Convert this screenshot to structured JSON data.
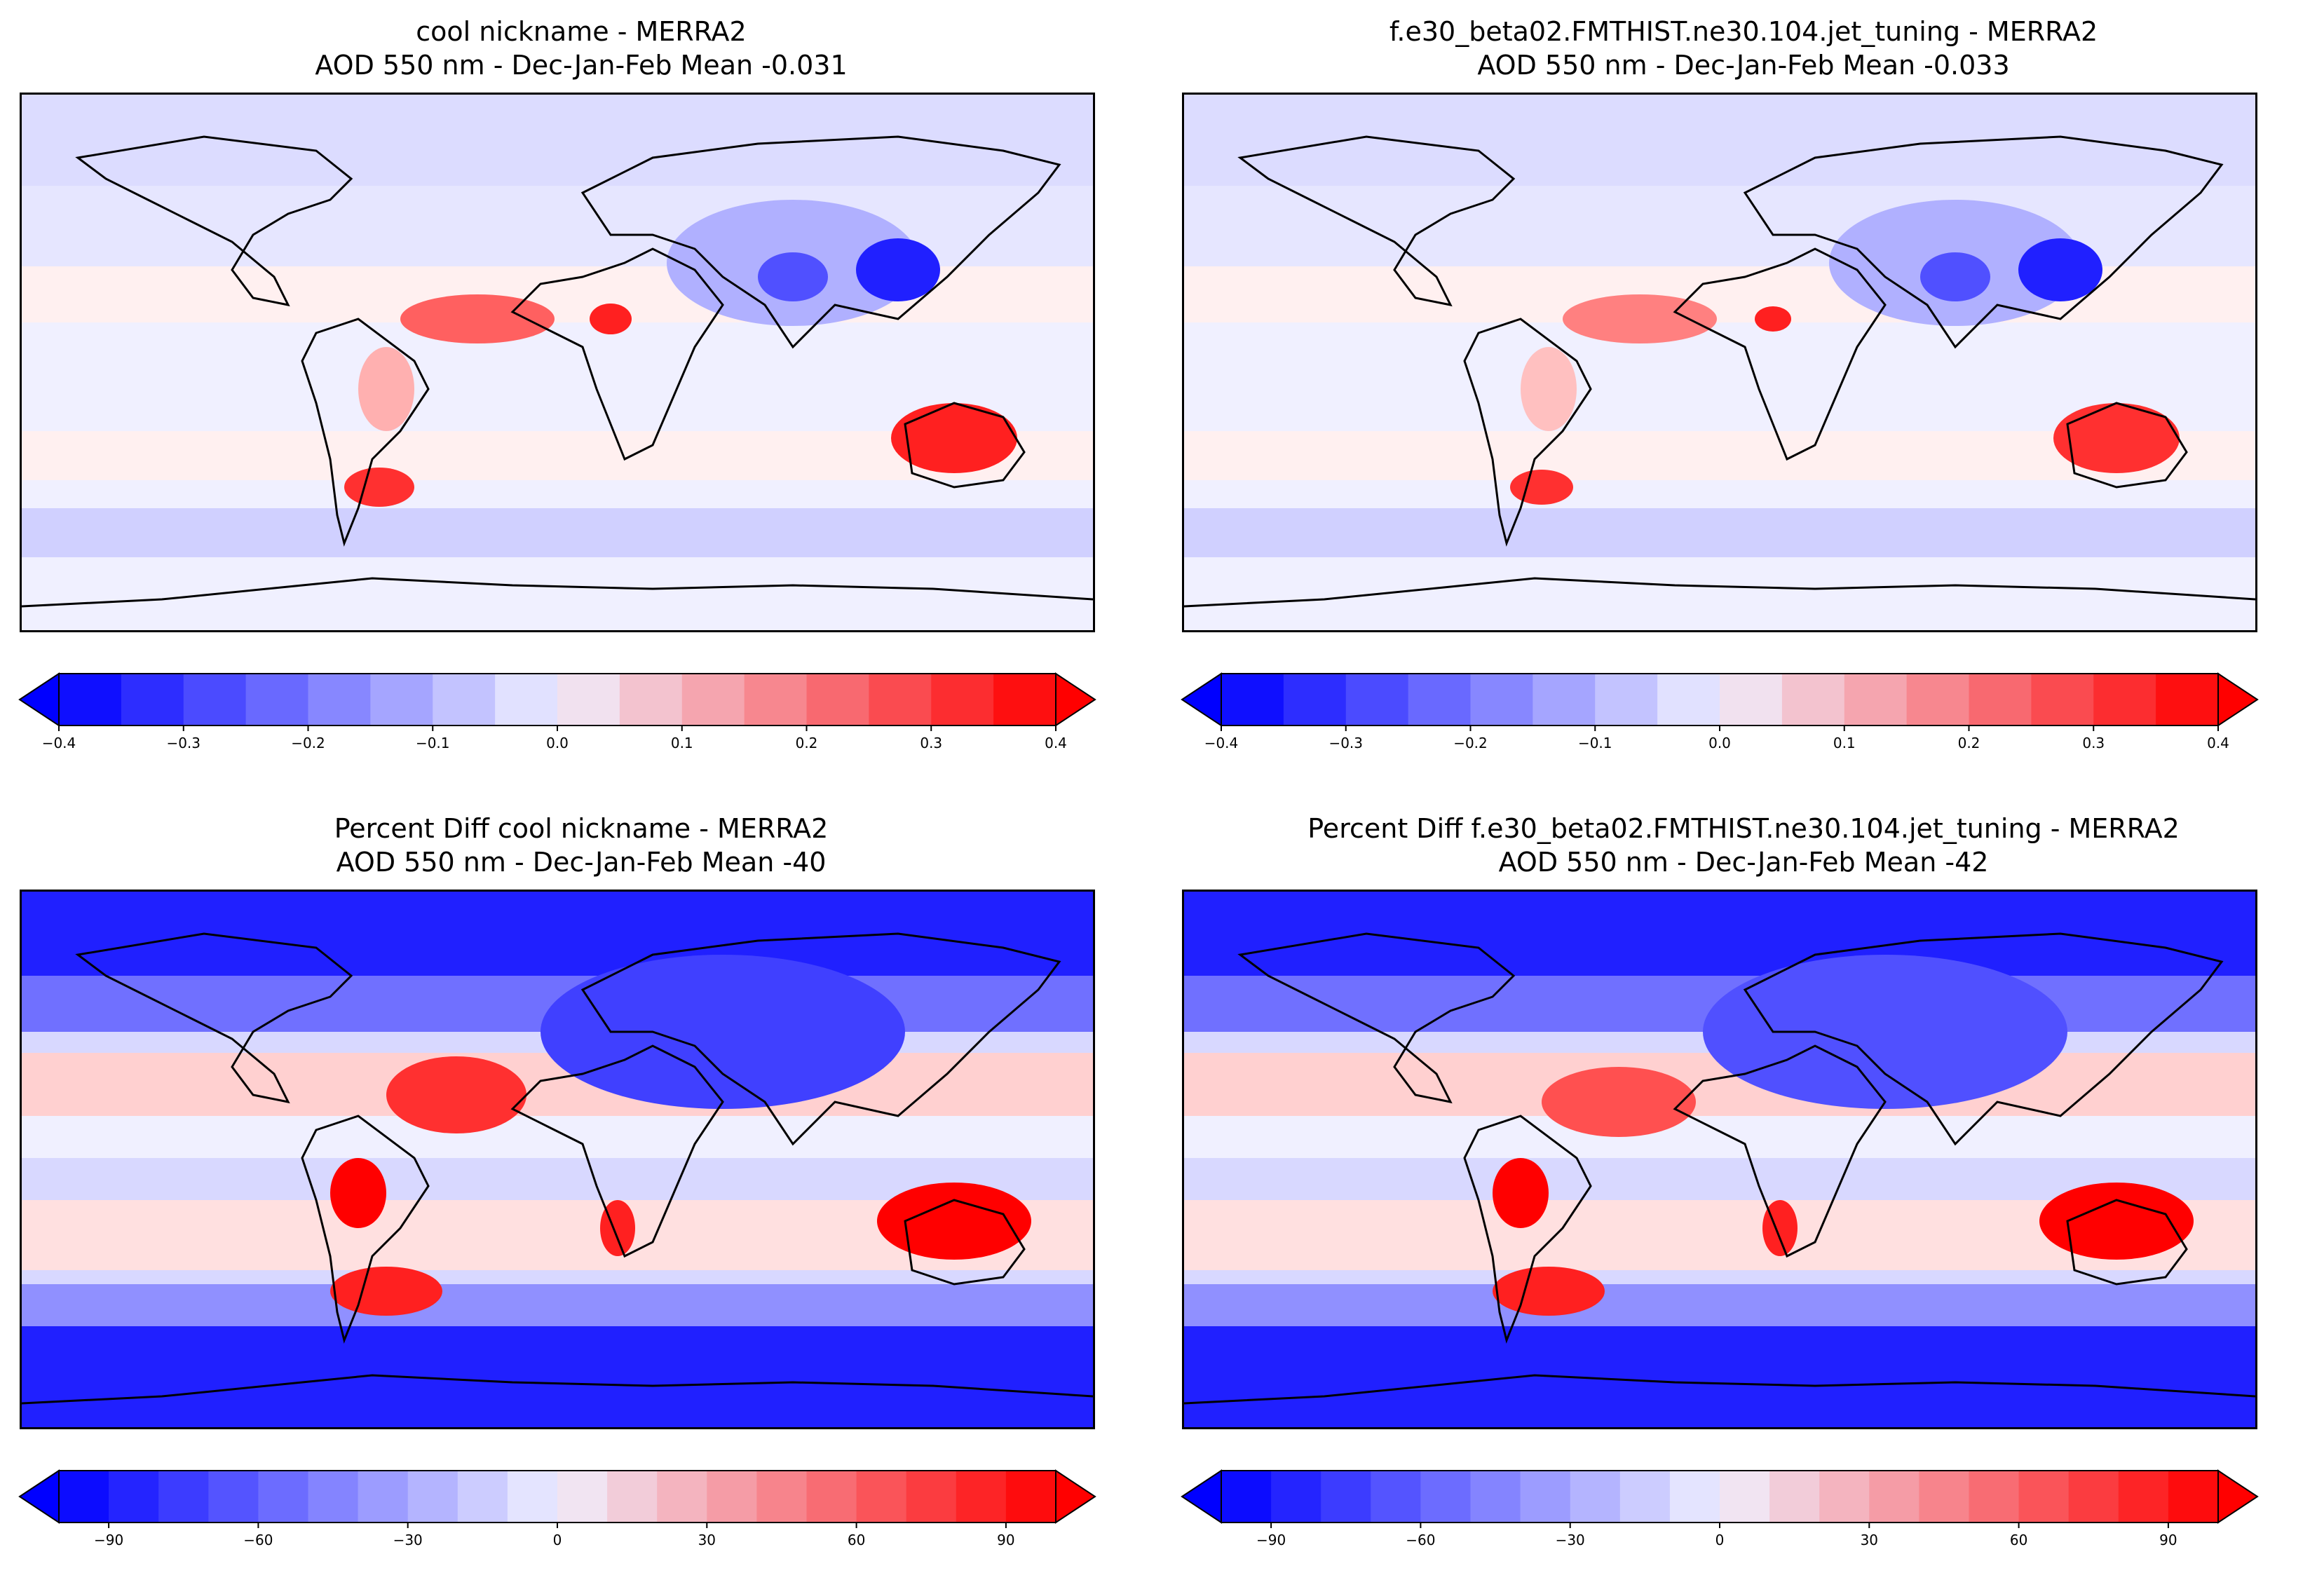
{
  "figure": {
    "panels": [
      {
        "id": "panel-tl",
        "title_line1": "cool nickname - MERRA2",
        "title_line2": "AOD 550 nm - Dec-Jan-Feb  Mean -0.031",
        "colorbar": {
          "levels": [
            "-0.4",
            "-0.35",
            "-0.3",
            "-0.25",
            "-0.2",
            "-0.15",
            "-0.1",
            "-0.05",
            "0.0",
            "0.05",
            "0.1",
            "0.15",
            "0.2",
            "0.25",
            "0.3",
            "0.35",
            "0.4"
          ],
          "ticks": [
            "−0.4",
            "−0.3",
            "−0.2",
            "−0.1",
            "0.0",
            "0.1",
            "0.2",
            "0.3",
            "0.4"
          ]
        }
      },
      {
        "id": "panel-tr",
        "title_line1": "f.e30_beta02.FMTHIST.ne30.104.jet_tuning - MERRA2",
        "title_line2": "AOD 550 nm - Dec-Jan-Feb  Mean -0.033",
        "colorbar": {
          "levels": [
            "-0.4",
            "-0.35",
            "-0.3",
            "-0.25",
            "-0.2",
            "-0.15",
            "-0.1",
            "-0.05",
            "0.0",
            "0.05",
            "0.1",
            "0.15",
            "0.2",
            "0.25",
            "0.3",
            "0.35",
            "0.4"
          ],
          "ticks": [
            "−0.4",
            "−0.3",
            "−0.2",
            "−0.1",
            "0.0",
            "0.1",
            "0.2",
            "0.3",
            "0.4"
          ]
        }
      },
      {
        "id": "panel-bl",
        "title_line1": "Percent Diff cool nickname - MERRA2",
        "title_line2": "AOD 550 nm - Dec-Jan-Feb  Mean -40",
        "colorbar": {
          "levels": [
            "-100",
            "-90",
            "-80",
            "-70",
            "-60",
            "-50",
            "-40",
            "-30",
            "-20",
            "-10",
            "0",
            "10",
            "20",
            "30",
            "40",
            "50",
            "60",
            "70",
            "80",
            "90",
            "100"
          ],
          "ticks": [
            "−90",
            "−60",
            "−30",
            "0",
            "30",
            "60",
            "90"
          ]
        }
      },
      {
        "id": "panel-br",
        "title_line1": "Percent Diff f.e30_beta02.FMTHIST.ne30.104.jet_tuning - MERRA2",
        "title_line2": "AOD 550 nm - Dec-Jan-Feb  Mean -42",
        "colorbar": {
          "levels": [
            "-100",
            "-90",
            "-80",
            "-70",
            "-60",
            "-50",
            "-40",
            "-30",
            "-20",
            "-10",
            "0",
            "10",
            "20",
            "30",
            "40",
            "50",
            "60",
            "70",
            "80",
            "90",
            "100"
          ],
          "ticks": [
            "−90",
            "−60",
            "−30",
            "0",
            "30",
            "60",
            "90"
          ]
        }
      }
    ],
    "colors": {
      "strong_blue": "#0000ff",
      "neutral": "#f0f0ff",
      "strong_red": "#ff0000",
      "coastline": "#000000"
    }
  }
}
